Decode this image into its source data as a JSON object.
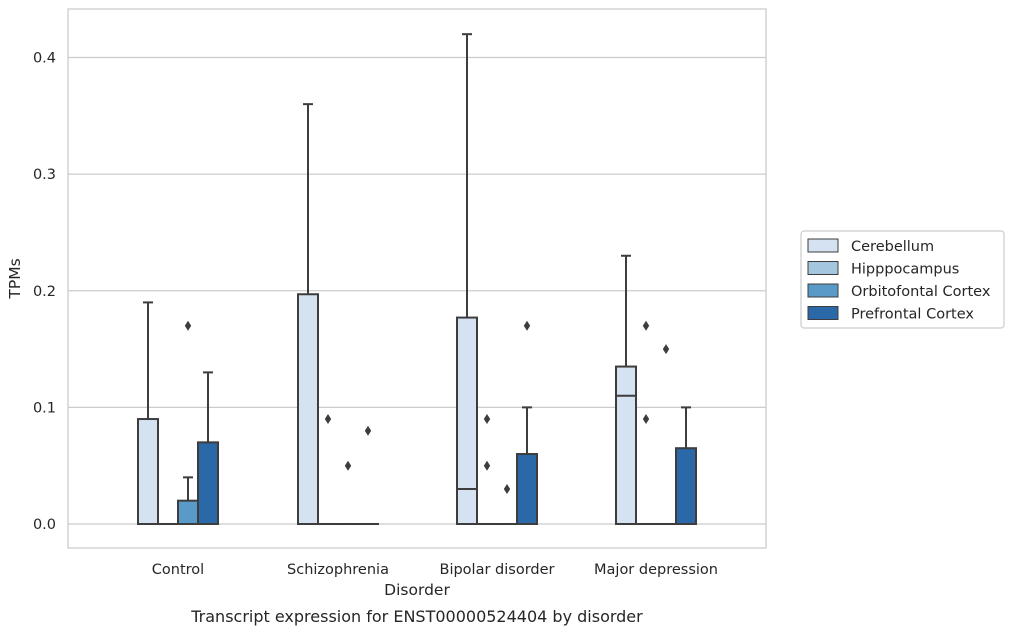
{
  "chart_data": {
    "type": "box",
    "title": "Transcript expression for ENST00000524404 by disorder",
    "xlabel": "Disorder",
    "ylabel": "TPMs",
    "ylim": [
      -0.02,
      0.44
    ],
    "yticks": [
      0.0,
      0.1,
      0.2,
      0.3,
      0.4
    ],
    "ytick_labels": [
      "0.0",
      "0.1",
      "0.2",
      "0.3",
      "0.4"
    ],
    "grid": "horizontal",
    "legend_position": "right",
    "categories": [
      "Control",
      "Schizophrenia",
      "Bipolar disorder",
      "Major depression"
    ],
    "series": [
      {
        "name": "Cerebellum",
        "color": "#d4e2f1",
        "boxes": [
          {
            "q1": 0.0,
            "median": 0.0,
            "q3": 0.09,
            "whisker_low": 0.0,
            "whisker_high": 0.19,
            "outliers": []
          },
          {
            "q1": 0.0,
            "median": 0.0,
            "q3": 0.197,
            "whisker_low": 0.0,
            "whisker_high": 0.36,
            "outliers": []
          },
          {
            "q1": 0.0,
            "median": 0.03,
            "q3": 0.177,
            "whisker_low": 0.0,
            "whisker_high": 0.42,
            "outliers": []
          },
          {
            "q1": 0.0,
            "median": 0.11,
            "q3": 0.135,
            "whisker_low": 0.0,
            "whisker_high": 0.23,
            "outliers": []
          }
        ]
      },
      {
        "name": "Hipppocampus",
        "color": "#a5c6df",
        "boxes": [
          {
            "q1": 0.0,
            "median": 0.0,
            "q3": 0.0,
            "whisker_low": 0.0,
            "whisker_high": 0.0,
            "outliers": []
          },
          {
            "q1": 0.0,
            "median": 0.0,
            "q3": 0.0,
            "whisker_low": 0.0,
            "whisker_high": 0.0,
            "outliers": [
              0.09
            ]
          },
          {
            "q1": 0.0,
            "median": 0.0,
            "q3": 0.0,
            "whisker_low": 0.0,
            "whisker_high": 0.0,
            "outliers": [
              0.09,
              0.05
            ]
          },
          {
            "q1": 0.0,
            "median": 0.0,
            "q3": 0.0,
            "whisker_low": 0.0,
            "whisker_high": 0.0,
            "outliers": [
              0.17,
              0.09
            ]
          }
        ]
      },
      {
        "name": "Orbitofontal Cortex",
        "color": "#5a9ac9",
        "boxes": [
          {
            "q1": 0.0,
            "median": 0.0,
            "q3": 0.02,
            "whisker_low": 0.0,
            "whisker_high": 0.04,
            "outliers": [
              0.17
            ]
          },
          {
            "q1": 0.0,
            "median": 0.0,
            "q3": 0.0,
            "whisker_low": 0.0,
            "whisker_high": 0.0,
            "outliers": [
              0.05
            ]
          },
          {
            "q1": 0.0,
            "median": 0.0,
            "q3": 0.0,
            "whisker_low": 0.0,
            "whisker_high": 0.0,
            "outliers": [
              0.03
            ]
          },
          {
            "q1": 0.0,
            "median": 0.0,
            "q3": 0.0,
            "whisker_low": 0.0,
            "whisker_high": 0.0,
            "outliers": [
              0.15
            ]
          }
        ]
      },
      {
        "name": "Prefrontal Cortex",
        "color": "#2a68a8",
        "boxes": [
          {
            "q1": 0.0,
            "median": 0.0,
            "q3": 0.07,
            "whisker_low": 0.0,
            "whisker_high": 0.13,
            "outliers": []
          },
          {
            "q1": 0.0,
            "median": 0.0,
            "q3": 0.0,
            "whisker_low": 0.0,
            "whisker_high": 0.0,
            "outliers": [
              0.08
            ]
          },
          {
            "q1": 0.0,
            "median": 0.0,
            "q3": 0.06,
            "whisker_low": 0.0,
            "whisker_high": 0.1,
            "outliers": [
              0.17
            ]
          },
          {
            "q1": 0.0,
            "median": 0.0,
            "q3": 0.065,
            "whisker_low": 0.0,
            "whisker_high": 0.1,
            "outliers": []
          }
        ]
      }
    ]
  }
}
